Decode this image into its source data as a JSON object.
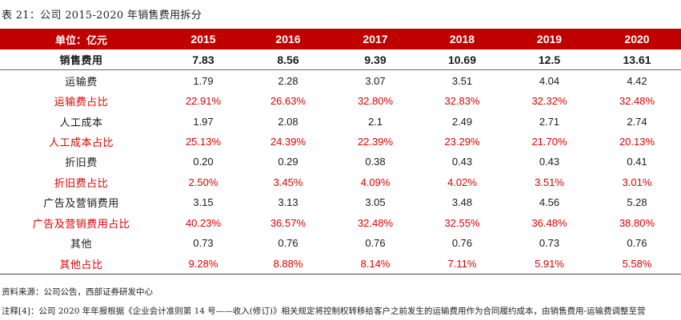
{
  "caption": "表 21：公司 2015-2020 年销售费用拆分",
  "table": {
    "header": [
      "单位：亿元",
      "2015",
      "2016",
      "2017",
      "2018",
      "2019",
      "2020"
    ],
    "rows": [
      {
        "label": "销售费用",
        "values": [
          "7.83",
          "8.56",
          "9.39",
          "10.69",
          "12.5",
          "13.61"
        ],
        "style": "bold"
      },
      {
        "label": "运输费",
        "values": [
          "1.79",
          "2.28",
          "3.07",
          "3.51",
          "4.04",
          "4.42"
        ],
        "style": "normal"
      },
      {
        "label": "运输费占比",
        "values": [
          "22.91%",
          "26.63%",
          "32.80%",
          "32.83%",
          "32.32%",
          "32.48%"
        ],
        "style": "red"
      },
      {
        "label": "人工成本",
        "values": [
          "1.97",
          "2.08",
          "2.1",
          "2.49",
          "2.71",
          "2.74"
        ],
        "style": "normal"
      },
      {
        "label": "人工成本占比",
        "values": [
          "25.13%",
          "24.39%",
          "22.39%",
          "23.29%",
          "21.70%",
          "20.13%"
        ],
        "style": "red"
      },
      {
        "label": "折旧费",
        "values": [
          "0.20",
          "0.29",
          "0.38",
          "0.43",
          "0.43",
          "0.41"
        ],
        "style": "normal"
      },
      {
        "label": "折旧费占比",
        "values": [
          "2.50%",
          "3.45%",
          "4.09%",
          "4.02%",
          "3.51%",
          "3.01%"
        ],
        "style": "red"
      },
      {
        "label": "广告及营销费用",
        "values": [
          "3.15",
          "3.13",
          "3.05",
          "3.48",
          "4.56",
          "5.28"
        ],
        "style": "normal"
      },
      {
        "label": "广告及营销费用占比",
        "values": [
          "40.23%",
          "36.57%",
          "32.48%",
          "32.55%",
          "36.48%",
          "38.80%"
        ],
        "style": "red"
      },
      {
        "label": "其他",
        "values": [
          "0.73",
          "0.76",
          "0.76",
          "0.76",
          "0.73",
          "0.76"
        ],
        "style": "normal"
      },
      {
        "label": "其他占比",
        "values": [
          "9.28%",
          "8.88%",
          "8.14%",
          "7.11%",
          "5.91%",
          "5.58%"
        ],
        "style": "red"
      }
    ]
  },
  "source": "资料来源：公司公告，西部证券研发中心",
  "note": "注释[4]：公司 2020 年年报根据《企业会计准则第 14 号——收入(修订)》相关规定将控制权转移给客户之前发生的运输费用作为合同履约成本，由销售费用-运输费调整至营",
  "colors": {
    "header_bg": "#c00000",
    "highlight_text": "#e00000"
  }
}
